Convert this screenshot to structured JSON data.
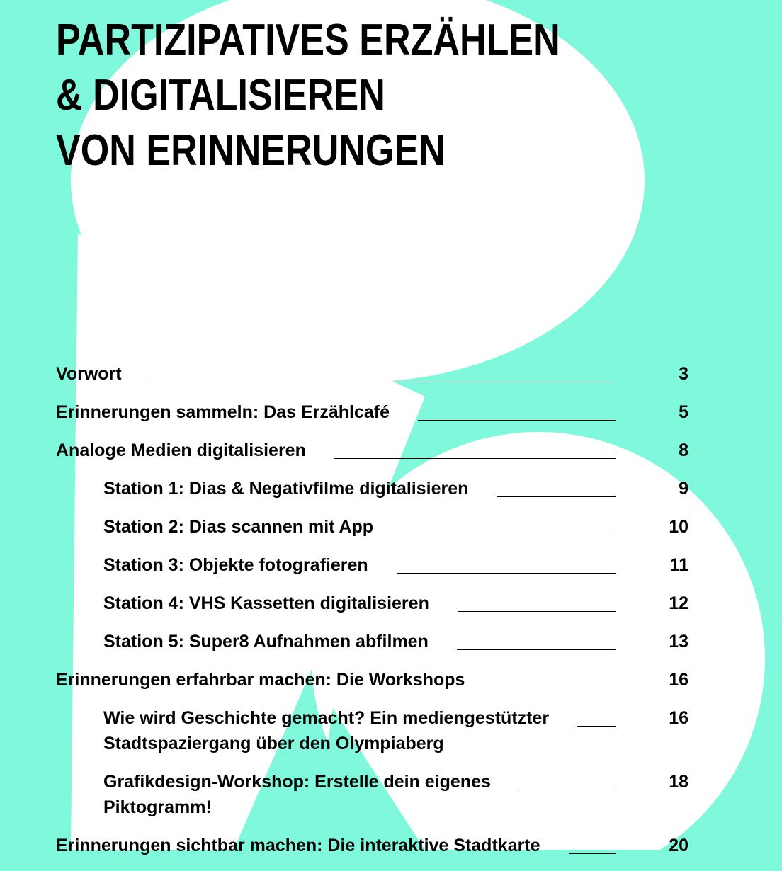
{
  "title": {
    "lines": [
      "PARTIZIPATIVES ERZÄHLEN",
      "& DIGITALISIEREN",
      "VON ERINNERUNGEN"
    ]
  },
  "toc": [
    {
      "level": 1,
      "lines": [
        "Vorwort"
      ],
      "page": "3"
    },
    {
      "level": 1,
      "lines": [
        "Erinnerungen sammeln: Das Erzählcafé"
      ],
      "page": "5"
    },
    {
      "level": 1,
      "lines": [
        "Analoge Medien digitalisieren"
      ],
      "page": "8"
    },
    {
      "level": 2,
      "lines": [
        "Station 1: Dias & Negativfilme digitalisieren"
      ],
      "page": "9"
    },
    {
      "level": 2,
      "lines": [
        "Station 2: Dias scannen mit App"
      ],
      "page": "10"
    },
    {
      "level": 2,
      "lines": [
        "Station 3: Objekte fotografieren"
      ],
      "page": "11"
    },
    {
      "level": 2,
      "lines": [
        "Station 4: VHS Kassetten digitalisieren"
      ],
      "page": "12"
    },
    {
      "level": 2,
      "lines": [
        "Station 5: Super8 Aufnahmen abfilmen"
      ],
      "page": "13"
    },
    {
      "level": 1,
      "lines": [
        "Erinnerungen erfahrbar machen: Die Workshops"
      ],
      "page": "16"
    },
    {
      "level": 2,
      "lines": [
        "Wie wird Geschichte gemacht? Ein mediengestützter",
        "Stadtspaziergang über den Olympiaberg"
      ],
      "page": "16"
    },
    {
      "level": 2,
      "lines": [
        "Grafikdesign-Workshop: Erstelle dein eigenes",
        "Piktogramm!"
      ],
      "page": "18"
    },
    {
      "level": 1,
      "lines": [
        "Erinnerungen sichtbar machen: Die interaktive Stadtkarte"
      ],
      "page": "20"
    }
  ]
}
